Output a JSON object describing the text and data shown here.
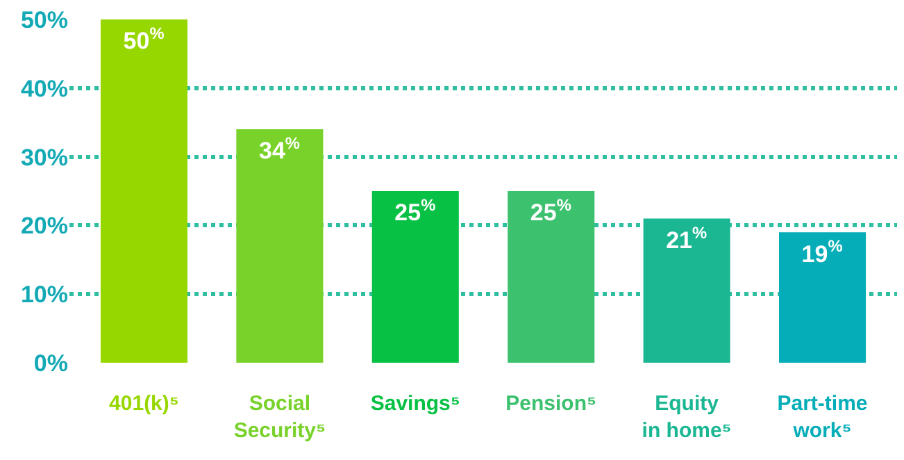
{
  "chart_data": {
    "type": "bar",
    "categories": [
      "401(k)⁵",
      "Social Security⁵",
      "Savings⁵",
      "Pension⁵",
      "Equity in home⁵",
      "Part-time work⁵"
    ],
    "values": [
      50,
      34,
      25,
      25,
      21,
      19
    ],
    "colors": [
      "#97d700",
      "#78d22a",
      "#06c144",
      "#3cc16e",
      "#1bb793",
      "#05adb8"
    ],
    "value_labels": [
      "50$^{%}$",
      "34$^{%}$",
      "25$^{%}$",
      "25$^{%}$",
      "21$^{%}$",
      "19$^{%}$"
    ],
    "ylim": [
      0,
      50
    ],
    "yticks": [
      {
        "value": 0,
        "label": "0%"
      },
      {
        "value": 10,
        "label": "10%"
      },
      {
        "value": 20,
        "label": "20%"
      },
      {
        "value": 30,
        "label": "30%"
      },
      {
        "value": 40,
        "label": "40%"
      },
      {
        "value": 50,
        "label": "50%"
      }
    ],
    "grid": "y"
  }
}
